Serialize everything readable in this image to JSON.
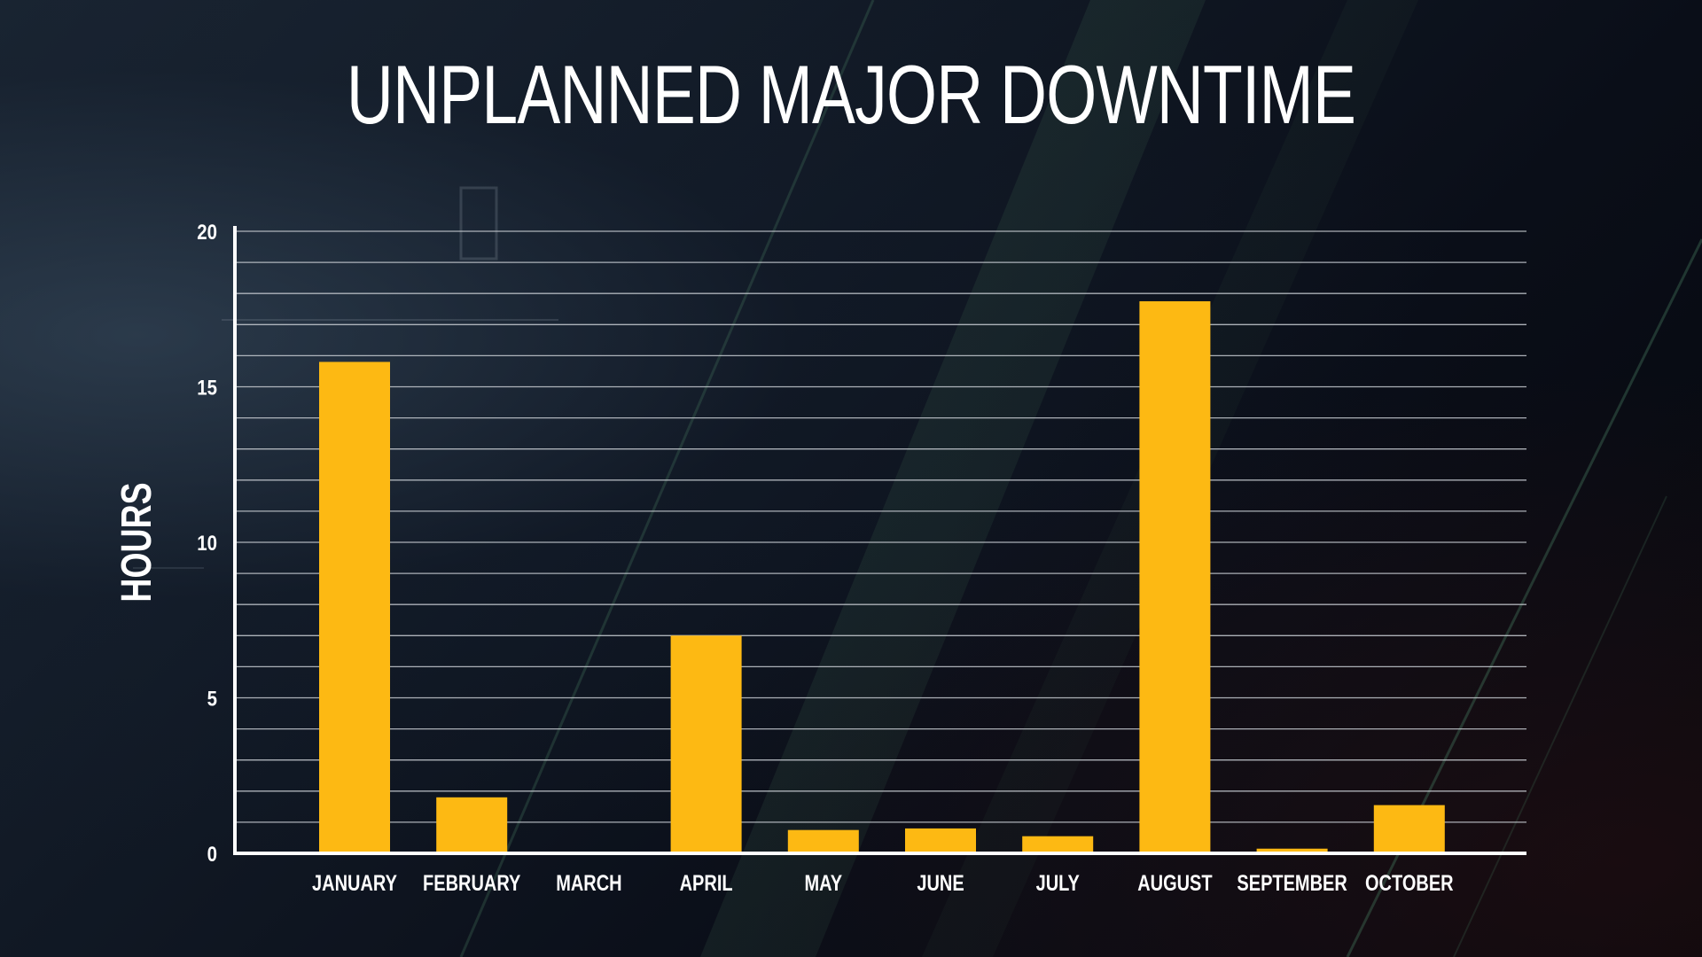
{
  "slide": {
    "title": "UNPLANNED MAJOR DOWNTIME"
  },
  "colors": {
    "bar": "#fdb913",
    "grid": "#c8ccd2",
    "axis": "#ffffff",
    "text": "#ffffff",
    "background": "#0b0f1a"
  },
  "chart_data": {
    "type": "bar",
    "title": "UNPLANNED MAJOR DOWNTIME",
    "xlabel": "",
    "ylabel": "HOURS",
    "categories": [
      "JANUARY",
      "FEBRUARY",
      "MARCH",
      "APRIL",
      "MAY",
      "JUNE",
      "JULY",
      "AUGUST",
      "SEPTEMBER",
      "OCTOBER"
    ],
    "values": [
      15.8,
      1.8,
      0,
      7.0,
      0.75,
      0.8,
      0.55,
      17.75,
      0.15,
      1.55
    ],
    "ylim": [
      0,
      20
    ],
    "yticks": [
      0,
      5,
      10,
      15,
      20
    ],
    "minor_grid_step": 1,
    "grid": true,
    "legend": "none"
  }
}
